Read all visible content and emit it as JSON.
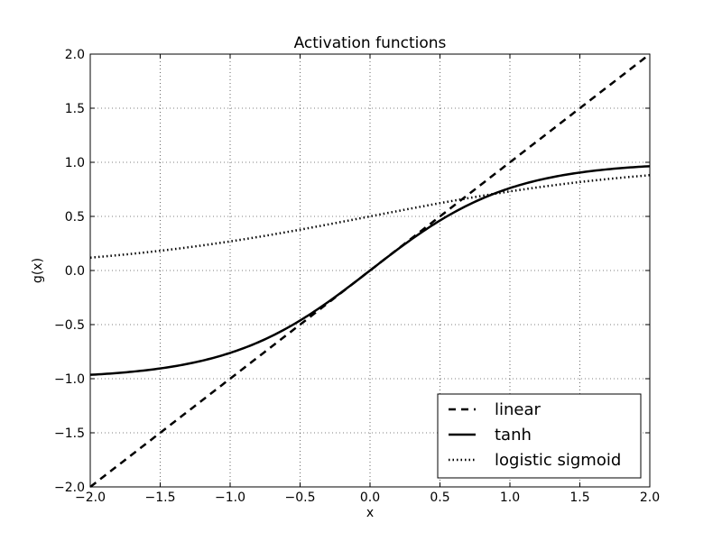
{
  "chart_data": {
    "type": "line",
    "title": "Activation functions",
    "xlabel": "x",
    "ylabel": "g(x)",
    "xlim": [
      -2.0,
      2.0
    ],
    "ylim": [
      -2.0,
      2.0
    ],
    "xticks": [
      -2.0,
      -1.5,
      -1.0,
      -0.5,
      0.0,
      0.5,
      1.0,
      1.5,
      2.0
    ],
    "yticks": [
      -2.0,
      -1.5,
      -1.0,
      -0.5,
      0.0,
      0.5,
      1.0,
      1.5,
      2.0
    ],
    "xtick_labels": [
      "−2.0",
      "−1.5",
      "−1.0",
      "−0.5",
      "0.0",
      "0.5",
      "1.0",
      "1.5",
      "2.0"
    ],
    "ytick_labels": [
      "−2.0",
      "−1.5",
      "−1.0",
      "−0.5",
      "0.0",
      "0.5",
      "1.0",
      "1.5",
      "2.0"
    ],
    "grid": true,
    "legend_position": "bottom-right",
    "x": [
      -2.0,
      -1.75,
      -1.5,
      -1.25,
      -1.0,
      -0.75,
      -0.5,
      -0.25,
      0.0,
      0.25,
      0.5,
      0.75,
      1.0,
      1.25,
      1.5,
      1.75,
      2.0
    ],
    "series": [
      {
        "name": "linear",
        "style": "dashed",
        "color": "#000000",
        "values": [
          -2.0,
          -1.75,
          -1.5,
          -1.25,
          -1.0,
          -0.75,
          -0.5,
          -0.25,
          0.0,
          0.25,
          0.5,
          0.75,
          1.0,
          1.25,
          1.5,
          1.75,
          2.0
        ]
      },
      {
        "name": "tanh",
        "style": "solid",
        "color": "#000000",
        "values": [
          -0.964,
          -0.941,
          -0.905,
          -0.848,
          -0.762,
          -0.635,
          -0.462,
          -0.245,
          0.0,
          0.245,
          0.462,
          0.635,
          0.762,
          0.848,
          0.905,
          0.941,
          0.964
        ]
      },
      {
        "name": "logistic sigmoid",
        "style": "dotted",
        "color": "#000000",
        "values": [
          0.119,
          0.148,
          0.182,
          0.223,
          0.269,
          0.321,
          0.378,
          0.438,
          0.5,
          0.562,
          0.622,
          0.679,
          0.731,
          0.777,
          0.818,
          0.852,
          0.881
        ]
      }
    ]
  }
}
